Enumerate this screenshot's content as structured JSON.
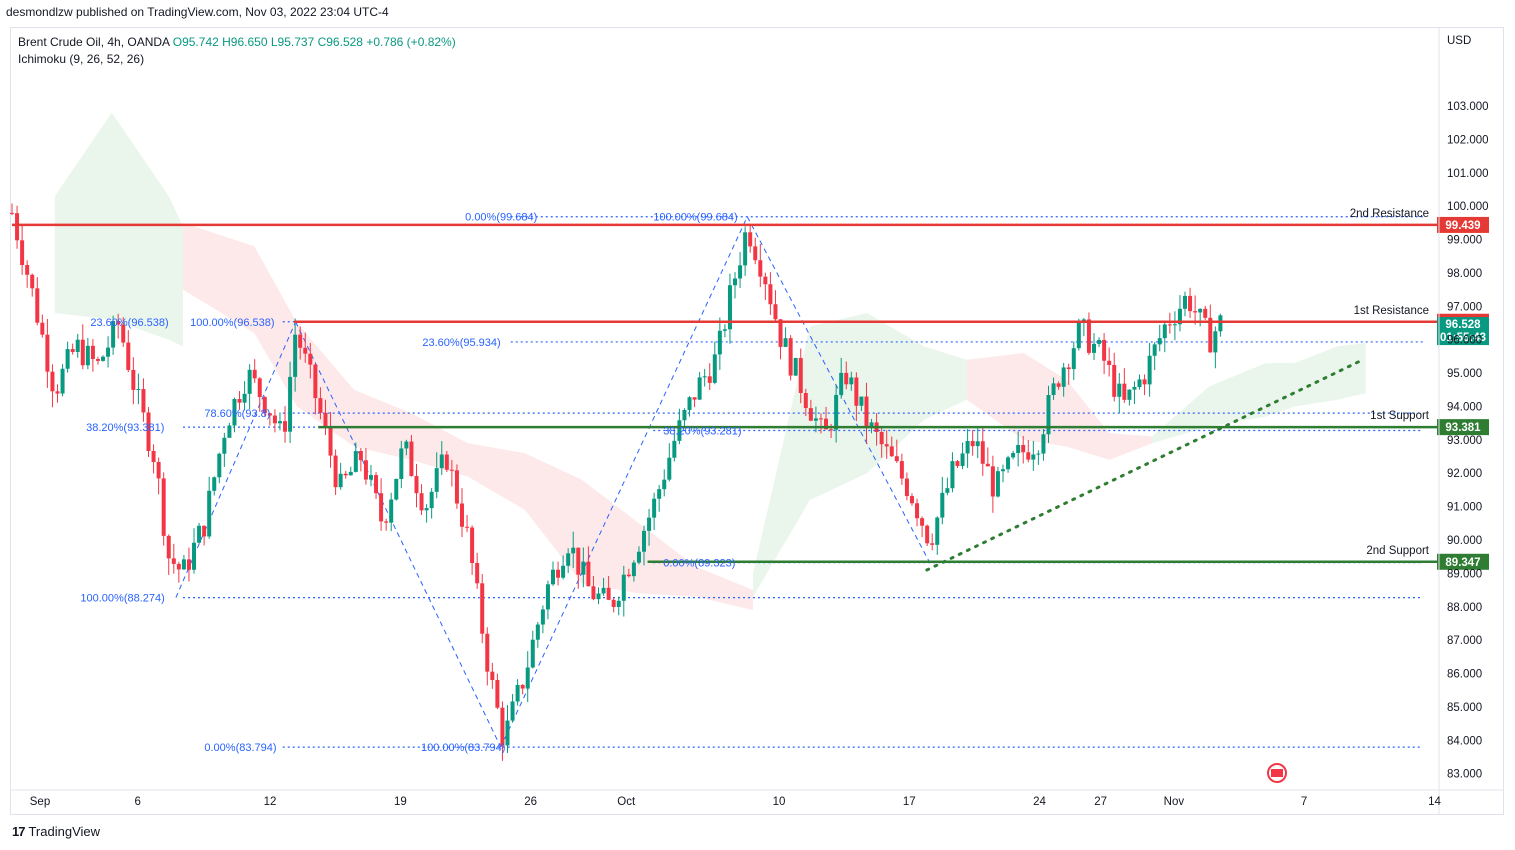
{
  "header": {
    "publisher": "desmondlzw published on TradingView.com, Nov 03, 2022 23:04 UTC-4"
  },
  "legend": {
    "symbol": "Brent Crude Oil, 4h, OANDA",
    "open": "O95.742",
    "high": "H96.650",
    "low": "L95.737",
    "close": "C96.528",
    "change": "+0.786 (+0.82%)",
    "indicator": "Ichimoku (9, 26, 52, 26)"
  },
  "footer": {
    "brand": "TradingView"
  },
  "colors": {
    "up": "#089981",
    "down": "#f23645",
    "resistance": "#e53935",
    "support": "#2e7d32",
    "fib": "#2962ff",
    "cloud_green": "#e8f5e9",
    "cloud_red": "#fde7e7"
  },
  "chart_data": {
    "type": "candlestick",
    "currency": "USD",
    "ylim": [
      82.6,
      104.2
    ],
    "y_ticks": [
      "83.000",
      "84.000",
      "85.000",
      "86.000",
      "87.000",
      "88.000",
      "89.000",
      "90.000",
      "91.000",
      "92.000",
      "93.000",
      "94.000",
      "95.000",
      "96.000",
      "97.000",
      "98.000",
      "99.000",
      "100.000",
      "101.000",
      "102.000",
      "103.000"
    ],
    "x_ticks": [
      {
        "label": "Sep",
        "t": 0
      },
      {
        "label": "6",
        "t": 0.0686
      },
      {
        "label": "12",
        "t": 0.1614
      },
      {
        "label": "19",
        "t": 0.2529
      },
      {
        "label": "26",
        "t": 0.3443
      },
      {
        "label": "Oct",
        "t": 0.4114
      },
      {
        "label": "10",
        "t": 0.5186
      },
      {
        "label": "17",
        "t": 0.61
      },
      {
        "label": "24",
        "t": 0.7014
      },
      {
        "label": "27",
        "t": 0.7443
      },
      {
        "label": "Nov",
        "t": 0.7957
      },
      {
        "label": "7",
        "t": 0.8871
      },
      {
        "label": "14",
        "t": 0.9786
      }
    ],
    "levels": [
      {
        "name": "2nd Resistance",
        "value": 99.439,
        "label": "99.439",
        "kind": "resistance"
      },
      {
        "name": "1st Resistance",
        "value": 96.538,
        "label": "96.538",
        "kind": "resistance"
      },
      {
        "name": "1st Support",
        "value": 93.381,
        "label": "93.381",
        "kind": "support"
      },
      {
        "name": "2nd Support",
        "value": 89.347,
        "label": "89.347",
        "kind": "support"
      }
    ],
    "last_price": {
      "value": 96.528,
      "label": "96.528",
      "countdown": "01:55:43"
    },
    "fib_labels": [
      {
        "text": "0.00%(99.684)",
        "t": 0.318,
        "value": 99.684
      },
      {
        "text": "100.00%(99.684)",
        "t": 0.45,
        "value": 99.684
      },
      {
        "text": "100.00%(96.538)",
        "t": 0.125,
        "value": 96.538
      },
      {
        "text": "23.60%(96.538)",
        "t": 0.055,
        "value": 96.538
      },
      {
        "text": "23.60%(95.934)",
        "t": 0.288,
        "value": 95.934
      },
      {
        "text": "78.60%(93.8)",
        "t": 0.135,
        "value": 93.8
      },
      {
        "text": "38.20%(93.381)",
        "t": 0.052,
        "value": 93.381
      },
      {
        "text": "38.20%(93.281)",
        "t": 0.457,
        "value": 93.281
      },
      {
        "text": "0.00%(89.323)",
        "t": 0.457,
        "value": 89.323
      },
      {
        "text": "100.00%(88.274)",
        "t": 0.048,
        "value": 88.274
      },
      {
        "text": "0.00%(83.794)",
        "t": 0.135,
        "value": 83.794
      },
      {
        "text": "100.00%(83.794)",
        "t": 0.287,
        "value": 83.794
      }
    ],
    "fib_lines": [
      {
        "value": 99.684,
        "t0": 0.35,
        "t1": 0.99
      },
      {
        "value": 96.538,
        "t0": 0.19,
        "t1": 0.99
      },
      {
        "value": 95.934,
        "t0": 0.35,
        "t1": 0.99
      },
      {
        "value": 93.8,
        "t0": 0.19,
        "t1": 0.99
      },
      {
        "value": 93.381,
        "t0": 0.12,
        "t1": 0.99
      },
      {
        "value": 93.281,
        "t0": 0.45,
        "t1": 0.99
      },
      {
        "value": 89.323,
        "t0": 0.45,
        "t1": 0.99
      },
      {
        "value": 88.274,
        "t0": 0.12,
        "t1": 0.99
      },
      {
        "value": 83.794,
        "t0": 0.19,
        "t1": 0.99
      }
    ],
    "zigzag": [
      {
        "t": 0.115,
        "v": 88.274
      },
      {
        "t": 0.199,
        "v": 96.538
      },
      {
        "t": 0.343,
        "v": 83.794
      },
      {
        "t": 0.516,
        "v": 99.684
      },
      {
        "t": 0.644,
        "v": 89.323
      }
    ],
    "trendline": {
      "t0": 0.642,
      "v0": 89.1,
      "t1": 0.948,
      "v1": 95.4
    },
    "candle_path": [
      {
        "t": 0.0,
        "v": 99.8
      },
      {
        "t": 0.012,
        "v": 97.8
      },
      {
        "t": 0.03,
        "v": 94.5
      },
      {
        "t": 0.045,
        "v": 95.8
      },
      {
        "t": 0.06,
        "v": 95.2
      },
      {
        "t": 0.075,
        "v": 96.5
      },
      {
        "t": 0.088,
        "v": 94.2
      },
      {
        "t": 0.1,
        "v": 92.5
      },
      {
        "t": 0.11,
        "v": 89.5
      },
      {
        "t": 0.12,
        "v": 89.0
      },
      {
        "t": 0.135,
        "v": 90.5
      },
      {
        "t": 0.15,
        "v": 93.5
      },
      {
        "t": 0.165,
        "v": 95.0
      },
      {
        "t": 0.18,
        "v": 94.0
      },
      {
        "t": 0.19,
        "v": 93.0
      },
      {
        "t": 0.199,
        "v": 96.3
      },
      {
        "t": 0.215,
        "v": 94.0
      },
      {
        "t": 0.23,
        "v": 91.5
      },
      {
        "t": 0.245,
        "v": 92.5
      },
      {
        "t": 0.26,
        "v": 90.5
      },
      {
        "t": 0.275,
        "v": 92.8
      },
      {
        "t": 0.29,
        "v": 91.0
      },
      {
        "t": 0.305,
        "v": 92.5
      },
      {
        "t": 0.32,
        "v": 90.0
      },
      {
        "t": 0.335,
        "v": 86.0
      },
      {
        "t": 0.345,
        "v": 84.0
      },
      {
        "t": 0.36,
        "v": 86.0
      },
      {
        "t": 0.375,
        "v": 88.5
      },
      {
        "t": 0.39,
        "v": 90.0
      },
      {
        "t": 0.405,
        "v": 88.5
      },
      {
        "t": 0.42,
        "v": 88.0
      },
      {
        "t": 0.435,
        "v": 89.5
      },
      {
        "t": 0.45,
        "v": 91.0
      },
      {
        "t": 0.465,
        "v": 93.0
      },
      {
        "t": 0.48,
        "v": 94.5
      },
      {
        "t": 0.495,
        "v": 95.5
      },
      {
        "t": 0.505,
        "v": 97.5
      },
      {
        "t": 0.516,
        "v": 99.4
      },
      {
        "t": 0.528,
        "v": 98.0
      },
      {
        "t": 0.54,
        "v": 96.0
      },
      {
        "t": 0.555,
        "v": 94.5
      },
      {
        "t": 0.57,
        "v": 93.0
      },
      {
        "t": 0.585,
        "v": 95.0
      },
      {
        "t": 0.6,
        "v": 93.5
      },
      {
        "t": 0.615,
        "v": 92.5
      },
      {
        "t": 0.63,
        "v": 91.5
      },
      {
        "t": 0.644,
        "v": 90.0
      },
      {
        "t": 0.66,
        "v": 92.0
      },
      {
        "t": 0.675,
        "v": 93.0
      },
      {
        "t": 0.69,
        "v": 91.5
      },
      {
        "t": 0.705,
        "v": 92.5
      },
      {
        "t": 0.72,
        "v": 93.0
      },
      {
        "t": 0.735,
        "v": 95.0
      },
      {
        "t": 0.75,
        "v": 96.3
      },
      {
        "t": 0.765,
        "v": 95.5
      },
      {
        "t": 0.78,
        "v": 94.0
      },
      {
        "t": 0.795,
        "v": 95.0
      },
      {
        "t": 0.81,
        "v": 96.5
      },
      {
        "t": 0.825,
        "v": 97.3
      },
      {
        "t": 0.84,
        "v": 96.0
      },
      {
        "t": 0.848,
        "v": 96.5
      }
    ],
    "cloud_segments": [
      {
        "color": "green",
        "points": [
          [
            0.03,
            96.8,
            100.3
          ],
          [
            0.07,
            96.6,
            102.8
          ],
          [
            0.11,
            96.0,
            100.3
          ],
          [
            0.12,
            95.8,
            99.4
          ]
        ]
      },
      {
        "color": "red",
        "points": [
          [
            0.12,
            99.5,
            97.5
          ],
          [
            0.17,
            98.8,
            96.2
          ],
          [
            0.2,
            96.5,
            94.0
          ],
          [
            0.24,
            94.5,
            92.8
          ],
          [
            0.28,
            93.8,
            92.4
          ],
          [
            0.32,
            92.9,
            91.9
          ],
          [
            0.36,
            92.6,
            90.9
          ],
          [
            0.4,
            91.8,
            88.7
          ],
          [
            0.44,
            90.5,
            88.4
          ],
          [
            0.48,
            89.2,
            88.3
          ],
          [
            0.52,
            88.5,
            87.9
          ]
        ]
      },
      {
        "color": "green",
        "points": [
          [
            0.52,
            88.3,
            89.0
          ],
          [
            0.56,
            91.2,
            96.4
          ],
          [
            0.6,
            92.0,
            96.8
          ],
          [
            0.64,
            93.6,
            95.8
          ],
          [
            0.67,
            94.2,
            95.4
          ]
        ]
      },
      {
        "color": "red",
        "points": [
          [
            0.67,
            95.4,
            94.2
          ],
          [
            0.71,
            95.6,
            93.0
          ],
          [
            0.74,
            94.8,
            92.8
          ],
          [
            0.77,
            93.2,
            92.4
          ],
          [
            0.8,
            92.9,
            93.1
          ]
        ]
      },
      {
        "color": "green",
        "points": [
          [
            0.8,
            93.1,
            92.9
          ],
          [
            0.84,
            93.4,
            94.6
          ],
          [
            0.88,
            93.7,
            95.3
          ],
          [
            0.9,
            94.0,
            95.3
          ],
          [
            0.93,
            94.2,
            95.8
          ],
          [
            0.95,
            94.4,
            95.9
          ]
        ]
      }
    ]
  }
}
